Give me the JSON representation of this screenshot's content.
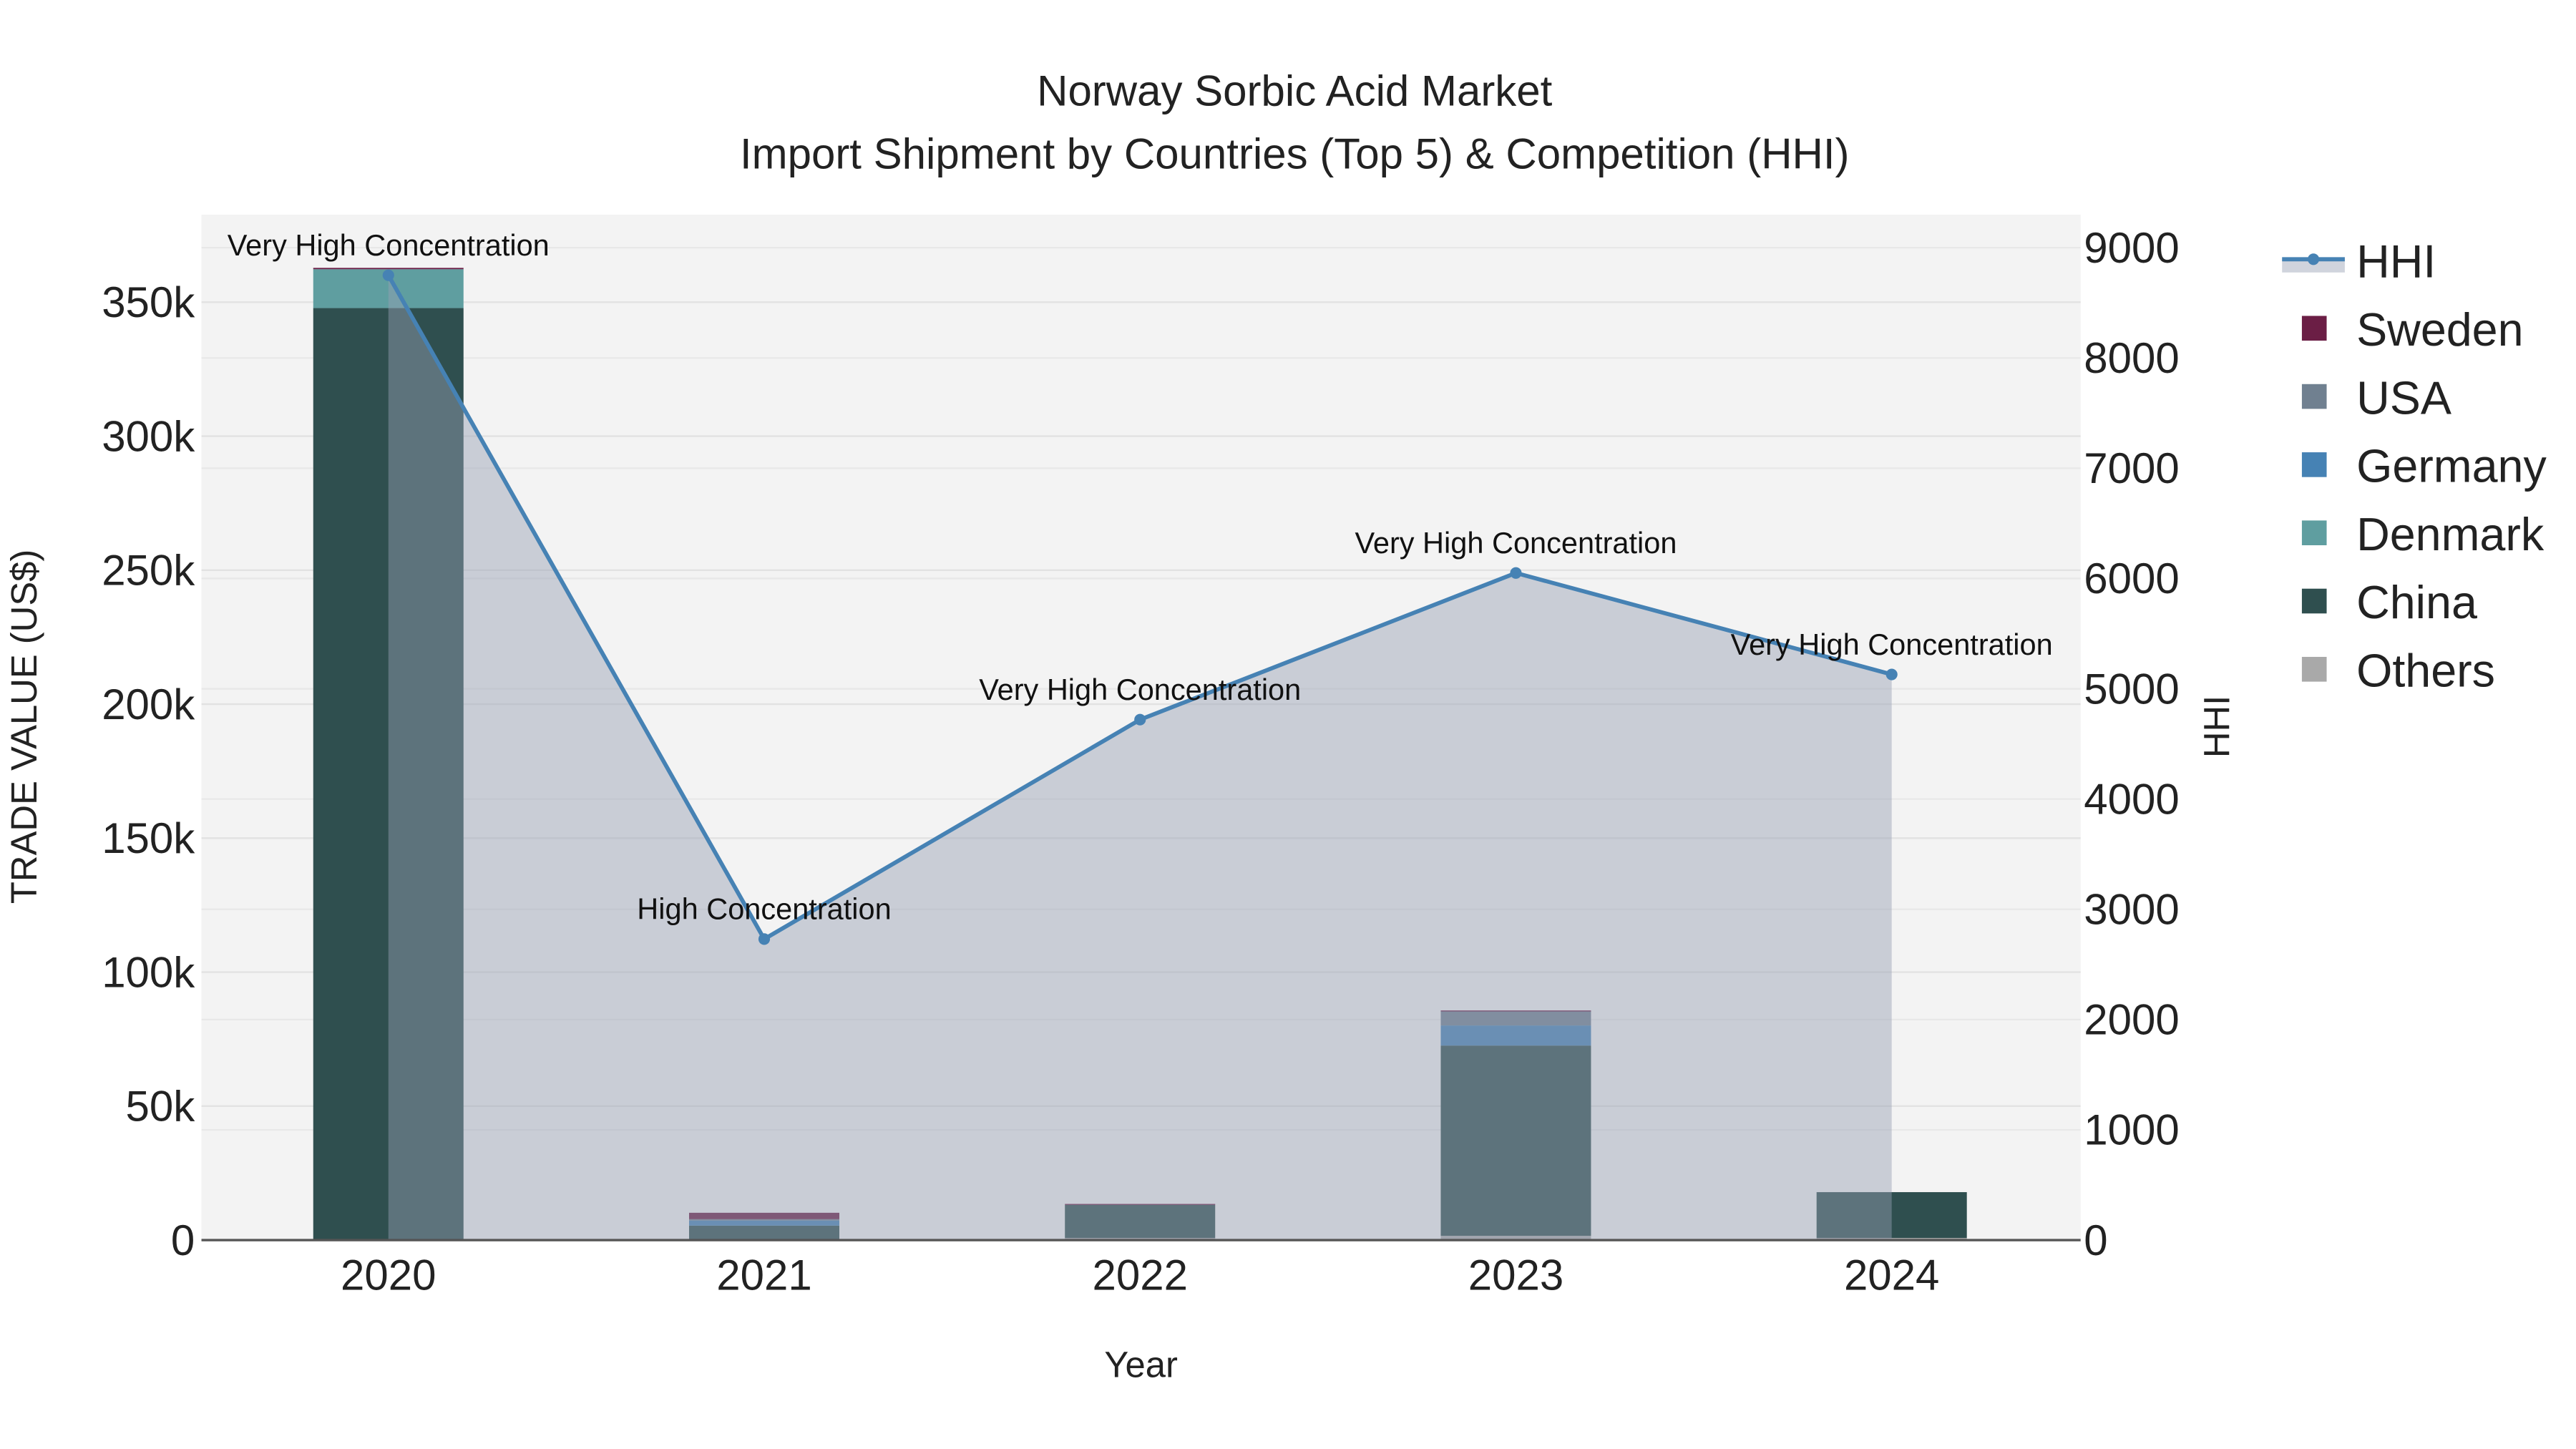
{
  "chart_data": {
    "type": "bar",
    "title": "Norway Sorbic Acid Market",
    "subtitle": "Import Shipment by Countries (Top 5) & Competition (HHI)",
    "xlabel": "Year",
    "ylabel": "TRADE VALUE (US$)",
    "y2label": "HHI",
    "categories": [
      "2020",
      "2021",
      "2022",
      "2023",
      "2024"
    ],
    "ylim": [
      0,
      380000
    ],
    "y2lim": [
      0,
      9300
    ],
    "yticks": [
      0,
      50000,
      100000,
      150000,
      200000,
      250000,
      300000,
      350000
    ],
    "ytick_labels": [
      "0",
      "50k",
      "100k",
      "150k",
      "200k",
      "250k",
      "300k",
      "350k"
    ],
    "y2ticks": [
      0,
      1000,
      2000,
      3000,
      4000,
      5000,
      6000,
      7000,
      8000,
      9000
    ],
    "y2tick_labels": [
      "0",
      "1000",
      "2000",
      "3000",
      "4000",
      "5000",
      "6000",
      "7000",
      "8000",
      "9000"
    ],
    "stack_order": [
      "Others",
      "China",
      "Denmark",
      "Germany",
      "USA",
      "Sweden"
    ],
    "series": [
      {
        "name": "Sweden",
        "color": "#6b1e45",
        "values": [
          500,
          2400,
          300,
          300,
          0
        ]
      },
      {
        "name": "USA",
        "color": "#708090",
        "values": [
          0,
          500,
          0,
          5300,
          0
        ]
      },
      {
        "name": "Germany",
        "color": "#4682b4",
        "values": [
          0,
          1900,
          0,
          7500,
          0
        ]
      },
      {
        "name": "Denmark",
        "color": "#5f9ea0",
        "values": [
          14500,
          0,
          0,
          0,
          0
        ]
      },
      {
        "name": "China",
        "color": "#2f4f4f",
        "values": [
          347500,
          5100,
          12400,
          71000,
          17100
        ]
      },
      {
        "name": "Others",
        "color": "#a9a9a9",
        "values": [
          300,
          300,
          800,
          1600,
          800
        ]
      }
    ],
    "hhi": {
      "name": "HHI",
      "color": "#4682b4",
      "values": [
        8750,
        2730,
        4720,
        6050,
        5130
      ],
      "annotations": [
        "Very High Concentration",
        "High Concentration",
        "Very High Concentration",
        "Very High Concentration",
        "Very High Concentration"
      ]
    },
    "legend": [
      "HHI",
      "Sweden",
      "USA",
      "Germany",
      "Denmark",
      "China",
      "Others"
    ],
    "legend_position": "right",
    "grid": true
  }
}
